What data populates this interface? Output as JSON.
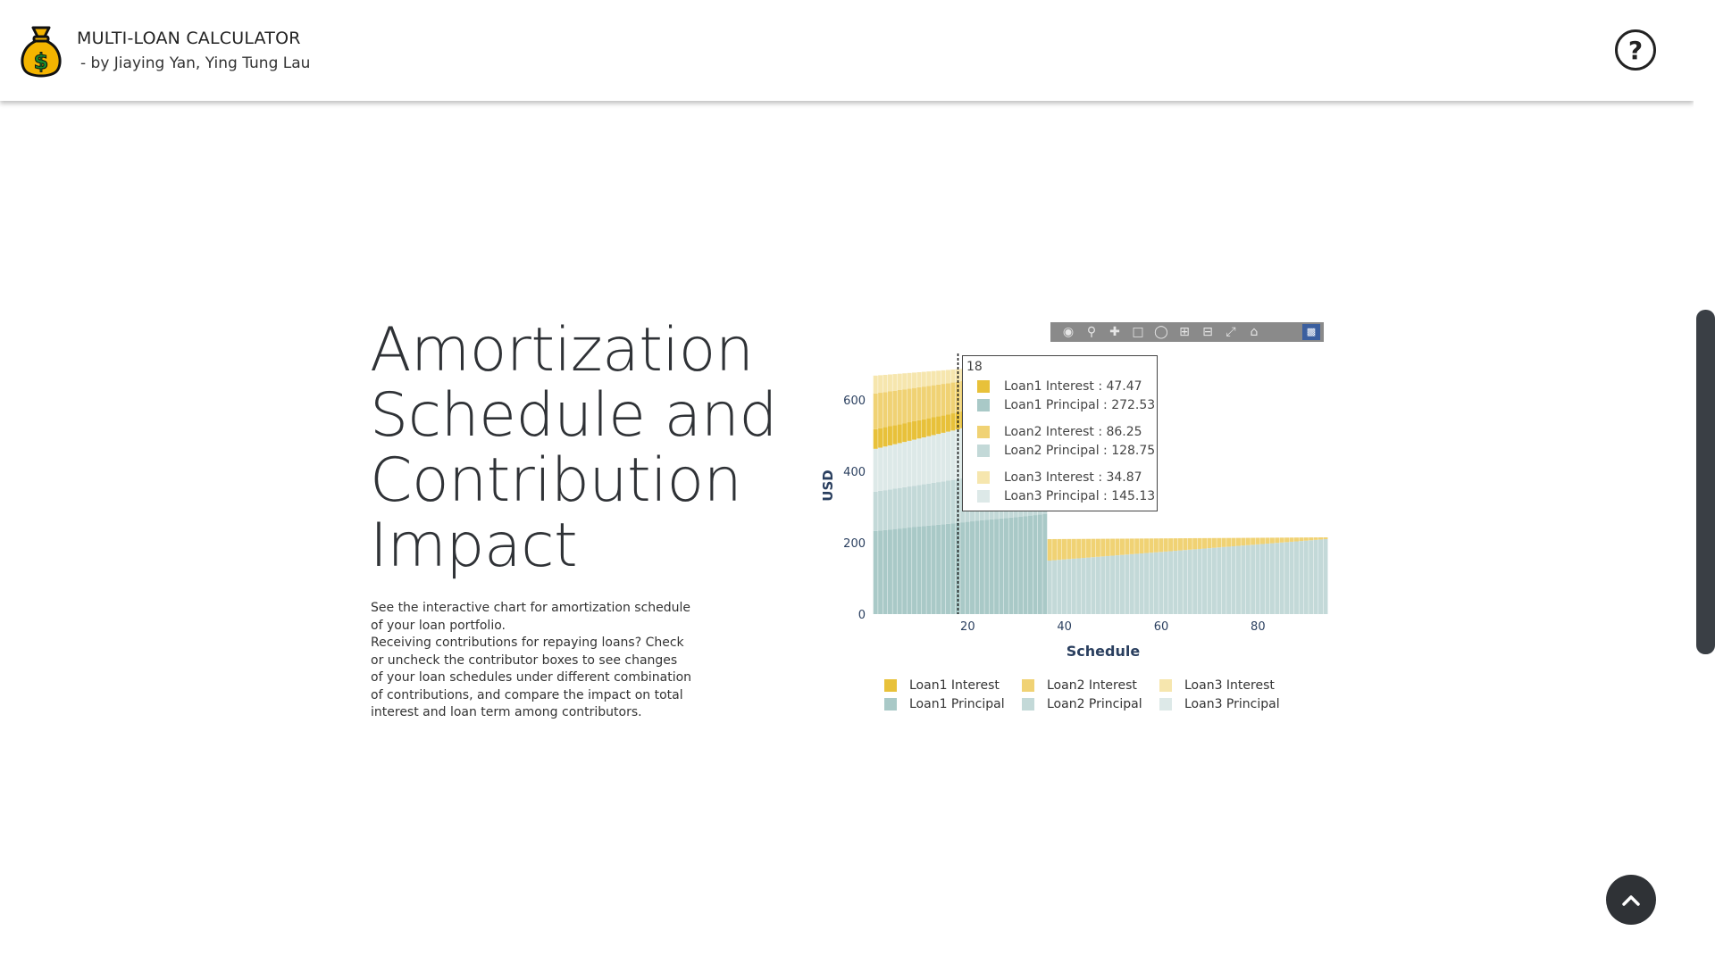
{
  "header": {
    "title": "MULTI-LOAN CALCULATOR",
    "subtitle": "- by Jiaying Yan, Ying Tung Lau",
    "help_label": "?"
  },
  "section": {
    "title": "Amortization Schedule and Contribution Impact",
    "description_1": "See the interactive chart for amortization schedule of your loan portfolio.",
    "description_2": "Receiving contributions for repaying loans? Check or uncheck the contributor boxes to see changes of your loan schedules under different combination of contributions, and compare the impact on total interest and loan term among contributors."
  },
  "tooltip": {
    "x": "18",
    "rows": [
      {
        "label": "Loan1 Interest : 47.47",
        "color": "#e8c13a"
      },
      {
        "label": "Loan1 Principal : 272.53",
        "color": "#a9c9c7"
      },
      {
        "label": "Loan2 Interest : 86.25",
        "color": "#f0d274"
      },
      {
        "label": "Loan2 Principal : 128.75",
        "color": "#c3d9d8"
      },
      {
        "label": "Loan3 Interest : 34.87",
        "color": "#f6e6ae"
      },
      {
        "label": "Loan3 Principal : 145.13",
        "color": "#dde9e8"
      }
    ]
  },
  "chart_data": {
    "type": "bar",
    "xlabel": "Schedule",
    "ylabel": "USD",
    "ylim": [
      0,
      720
    ],
    "xlim": [
      0,
      96
    ],
    "x_ticks": [
      "20",
      "40",
      "60",
      "80"
    ],
    "y_ticks": [
      "0",
      "200",
      "400",
      "600"
    ],
    "hover_x": 18,
    "series": [
      {
        "name": "Loan1 Principal",
        "color": "#a9c9c7",
        "start": 233,
        "end": 280,
        "last_period": 36
      },
      {
        "name": "Loan2 Principal",
        "color": "#c3d9d8",
        "start": 110,
        "end": 135,
        "last_period": 36
      },
      {
        "name": "Loan3 Principal",
        "color": "#dde9e8",
        "start": 120,
        "end": 160,
        "last_period": 36
      },
      {
        "name": "Loan1 Interest",
        "color": "#e8c13a",
        "start": 55,
        "end": 40,
        "last_period": 36
      },
      {
        "name": "Loan2 Interest",
        "color": "#f0d274",
        "start": 100,
        "end": 70,
        "last_period": 36
      },
      {
        "name": "Loan3 Interest",
        "color": "#f6e6ae",
        "start": 50,
        "end": 20,
        "last_period": 36
      }
    ],
    "tail": {
      "principal": {
        "start": 150,
        "end": 210,
        "color": "#c3d9d8"
      },
      "interest": {
        "start": 60,
        "end": 5,
        "color": "#f0d274"
      },
      "from_period": 37,
      "to_period": 94
    },
    "legend_placement": "bottom"
  },
  "modebar": {
    "icons": [
      "camera-icon",
      "zoom-icon",
      "pan-icon",
      "box-select-icon",
      "lasso-icon",
      "zoom-in-icon",
      "zoom-out-icon",
      "autoscale-icon",
      "reset-axes-icon"
    ],
    "logo": "plotly-logo-icon"
  },
  "back_to_top": {
    "icon": "chevron-up-icon"
  }
}
